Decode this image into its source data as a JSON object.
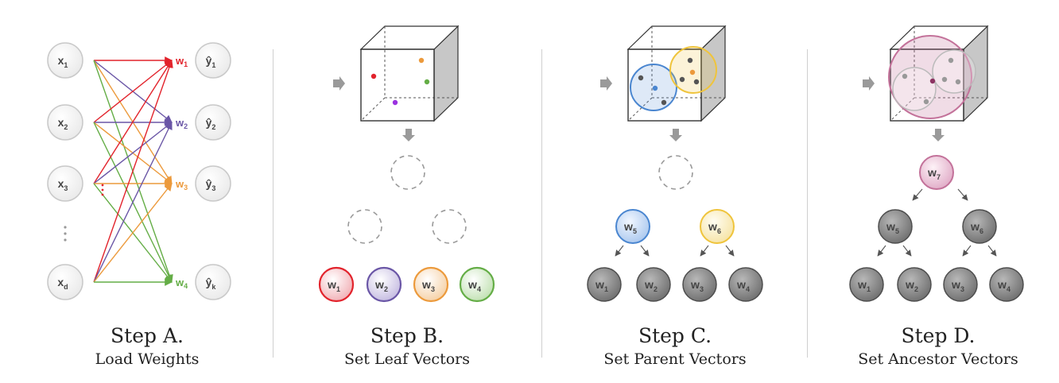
{
  "steps": [
    {
      "title": "Step A.",
      "subtitle": "Load Weights"
    },
    {
      "title": "Step B.",
      "subtitle": "Set Leaf Vectors"
    },
    {
      "title": "Step C.",
      "subtitle": "Set Parent Vectors"
    },
    {
      "title": "Step D.",
      "subtitle": "Set Ancestor Vectors"
    }
  ],
  "inputs": [
    {
      "base": "x",
      "sub": "1"
    },
    {
      "base": "x",
      "sub": "2"
    },
    {
      "base": "x",
      "sub": "3"
    },
    {
      "base": "x",
      "sub": "d"
    }
  ],
  "outputs": [
    {
      "base": "ŷ",
      "sub": "1"
    },
    {
      "base": "ŷ",
      "sub": "2"
    },
    {
      "base": "ŷ",
      "sub": "3"
    },
    {
      "base": "ŷ",
      "sub": "k"
    }
  ],
  "weight_labels": [
    {
      "base": "w",
      "sub": "1"
    },
    {
      "base": "w",
      "sub": "2"
    },
    {
      "base": "w",
      "sub": "3"
    },
    {
      "base": "w",
      "sub": "4"
    }
  ],
  "parents": [
    {
      "base": "w",
      "sub": "5"
    },
    {
      "base": "w",
      "sub": "6"
    }
  ],
  "root": {
    "base": "w",
    "sub": "7"
  },
  "colors": {
    "red": "#e2232c",
    "purple": "#6a56a6",
    "orange": "#ec9a3c",
    "green": "#64ad46",
    "blue": "#4a86d0",
    "yellow": "#efc43c",
    "pink": "#c3729a",
    "gray": "#7a7a7a"
  }
}
